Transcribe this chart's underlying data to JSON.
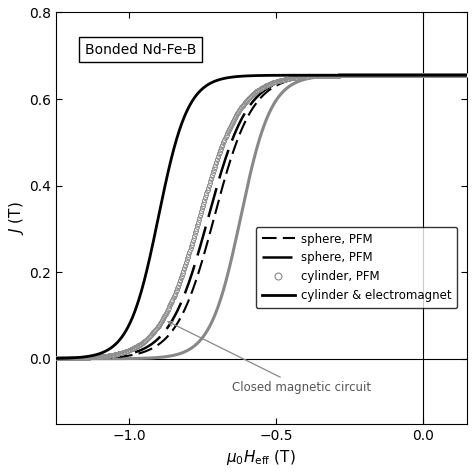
{
  "title": "Bonded Nd-Fe-B",
  "xlabel": "$\\mu_0 H_\\mathrm{eff}$ (T)",
  "ylabel": "$J$ (T)",
  "xlim": [
    -1.25,
    0.15
  ],
  "ylim": [
    -0.15,
    0.8
  ],
  "xticks": [
    -1.0,
    -0.5,
    0.0
  ],
  "yticks": [
    0.0,
    0.2,
    0.4,
    0.6,
    0.8
  ],
  "background_color": "#ffffff",
  "annotation_closed": "Closed magnetic circuit",
  "Js": 0.655,
  "gray_lw": 2.2,
  "sphere1_lw": 1.5,
  "sphere2_lw": 1.8,
  "em_lw": 2.0
}
